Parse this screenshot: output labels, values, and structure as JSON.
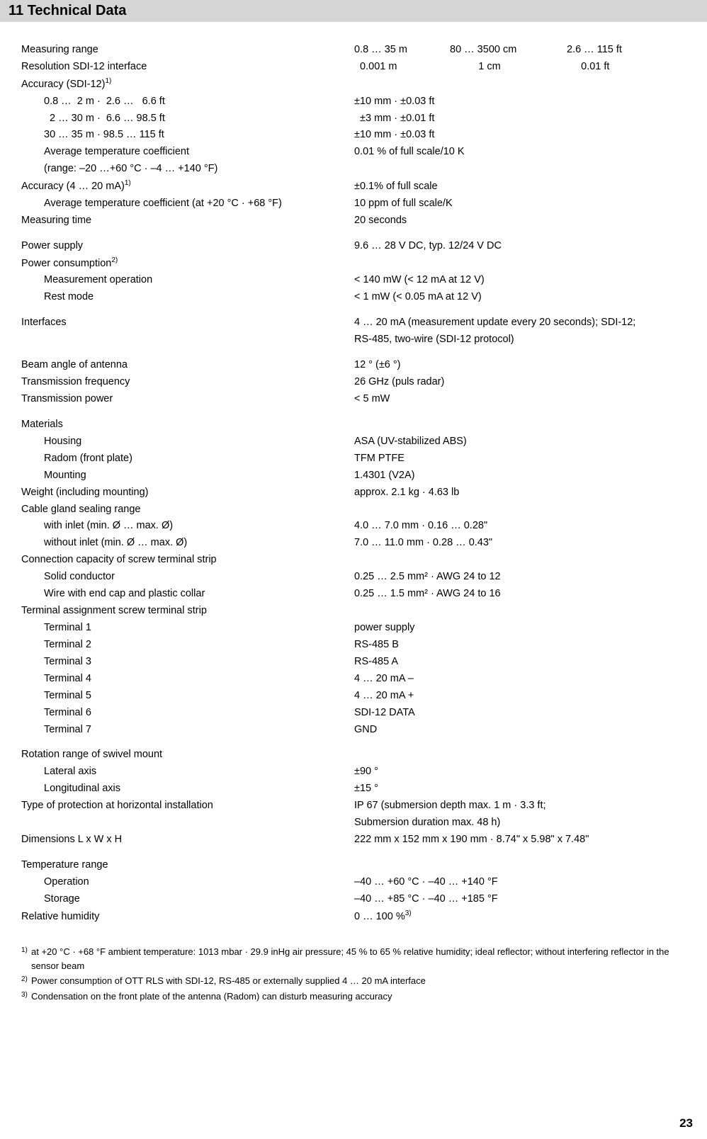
{
  "header": "11 Technical Data",
  "rows": [
    {
      "label": "Measuring range",
      "col1": "0.8 … 35 m",
      "col2": "80 … 3500 cm",
      "col3": "2.6 … 115 ft"
    },
    {
      "label": "Resolution SDI-12 interface",
      "col1": "  0.001 m",
      "col2": "          1 cm",
      "col3": "     0.01 ft"
    }
  ],
  "accuracy_sdi_label": "Accuracy (SDI-12)",
  "accuracy_sdi_sup": "1)",
  "accuracy_sdi_rows": [
    {
      "label": "0.8 …  2 m ·  2.6 …   6.6 ft",
      "value": "±10 mm · ±0.03 ft"
    },
    {
      "label": "  2 … 30 m ·  6.6 … 98.5 ft",
      "value": "  ±3 mm · ±0.01 ft"
    },
    {
      "label": "30 … 35 m · 98.5 … 115 ft",
      "value": "±10 mm · ±0.03 ft"
    },
    {
      "label": "Average temperature coefficient",
      "value": "0.01 % of full scale/10 K"
    },
    {
      "label": "(range: –20 …+60 °C · –4 … +140 °F)",
      "value": ""
    }
  ],
  "accuracy_420_label": "Accuracy (4 … 20 mA)",
  "accuracy_420_sup": "1)",
  "accuracy_420_value": "±0.1% of full scale",
  "accuracy_420_rows": [
    {
      "label": "Average temperature coefficient (at +20 °C · +68 °F)",
      "value": "10 ppm of full scale/K"
    }
  ],
  "measuring_time": {
    "label": "Measuring time",
    "value": "20 seconds"
  },
  "power_supply": {
    "label": "Power supply",
    "value": "9.6 …  28 V DC, typ. 12/24 V DC"
  },
  "power_consumption_label": "Power consumption",
  "power_consumption_sup": "2)",
  "power_consumption_rows": [
    {
      "label": "Measurement operation",
      "value": "< 140 mW (< 12 mA at 12 V)"
    },
    {
      "label": "Rest mode",
      "value": "< 1 mW (< 0.05 mA at 12 V)"
    }
  ],
  "interfaces": {
    "label": "Interfaces",
    "value1": "4 … 20 mA (measurement update every 20 seconds); SDI-12;",
    "value2": "RS-485, two-wire (SDI-12 protocol)"
  },
  "beam_angle": {
    "label": "Beam angle of antenna",
    "value": "12 ° (±6 °)"
  },
  "transmission_freq": {
    "label": "Transmission frequency",
    "value": "26 GHz (puls radar)"
  },
  "transmission_power": {
    "label": "Transmission power",
    "value": "< 5 mW"
  },
  "materials_label": "Materials",
  "materials_rows": [
    {
      "label": "Housing",
      "value": "ASA (UV-stabilized ABS)"
    },
    {
      "label": "Radom (front plate)",
      "value": "TFM PTFE"
    },
    {
      "label": "Mounting",
      "value": "1.4301 (V2A)"
    }
  ],
  "weight": {
    "label": "Weight (including mounting)",
    "value": "approx. 2.1 kg · 4.63 lb"
  },
  "cable_gland_label": "Cable gland sealing range",
  "cable_gland_rows": [
    {
      "label": "with inlet (min. Ø … max. Ø)",
      "value": "4.0 … 7.0 mm · 0.16 … 0.28\""
    },
    {
      "label": "without inlet (min. Ø … max. Ø)",
      "value": "7.0 … 11.0 mm · 0.28 … 0.43\""
    }
  ],
  "connection_label": "Connection capacity of screw terminal strip",
  "connection_rows": [
    {
      "label": "Solid conductor",
      "value": "0.25 … 2.5 mm² · AWG 24 to 12"
    },
    {
      "label": "Wire with end cap and plastic collar",
      "value": "0.25 … 1.5 mm² · AWG 24 to 16"
    }
  ],
  "terminal_label": "Terminal assignment screw terminal strip",
  "terminal_rows": [
    {
      "label": "Terminal 1",
      "value": "power supply"
    },
    {
      "label": "Terminal 2",
      "value": "RS-485 B"
    },
    {
      "label": "Terminal 3",
      "value": "RS-485 A"
    },
    {
      "label": "Terminal 4",
      "value": "4 … 20 mA –"
    },
    {
      "label": "Terminal 5",
      "value": "4 … 20 mA +"
    },
    {
      "label": "Terminal 6",
      "value": "SDI-12 DATA"
    },
    {
      "label": "Terminal 7",
      "value": "GND"
    }
  ],
  "rotation_label": "Rotation range of swivel mount",
  "rotation_rows": [
    {
      "label": "Lateral axis",
      "value": "±90 °"
    },
    {
      "label": "Longitudinal axis",
      "value": "±15 °"
    }
  ],
  "protection": {
    "label": "Type of protection at horizontal installation",
    "value1": "IP 67 (submersion depth max. 1 m · 3.3 ft;",
    "value2": "Submersion duration max. 48 h)"
  },
  "dimensions": {
    "label": "Dimensions L x W x H",
    "value": "222 mm x 152 mm x 190 mm · 8.74\" x 5.98\" x 7.48\""
  },
  "temp_label": "Temperature range",
  "temp_rows": [
    {
      "label": "Operation",
      "value": "–40 … +60 °C · –40 … +140 °F"
    },
    {
      "label": "Storage",
      "value": "–40 … +85 °C · –40 … +185 °F"
    }
  ],
  "humidity": {
    "label": "Relative humidity",
    "value": "0 … 100 %",
    "sup": "3)"
  },
  "footnotes": [
    {
      "num": "1)",
      "text": "at +20 °C · +68 °F ambient temperature: 1013 mbar · 29.9 inHg air pressure; 45 % to 65 % relative humidity; ideal reflector; without interfering reflector in the sensor beam"
    },
    {
      "num": "2)",
      "text": "Power consumption of OTT RLS with SDI-12, RS-485 or externally supplied 4 … 20 mA interface"
    },
    {
      "num": "3)",
      "text": "Condensation on the front plate of the antenna (Radom) can disturb measuring accuracy"
    }
  ],
  "page_number": "23"
}
